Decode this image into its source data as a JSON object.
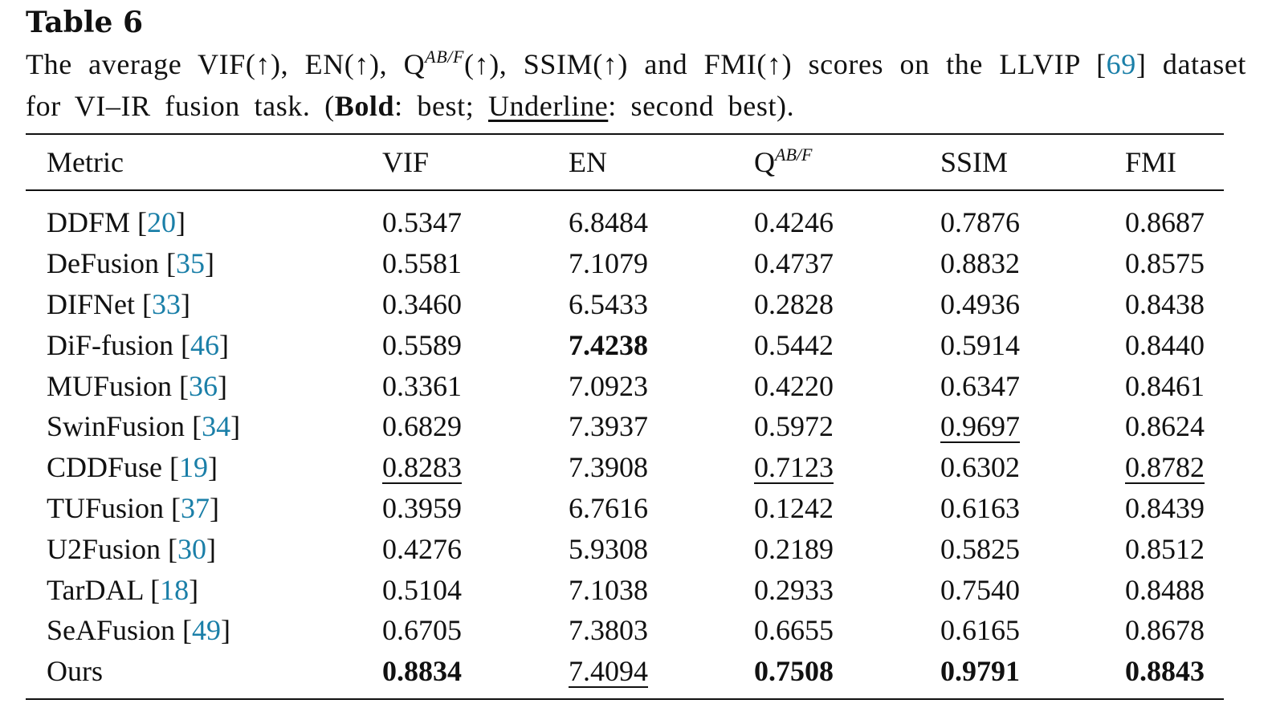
{
  "table_label": "Table 6",
  "caption": {
    "part1": "The average VIF(↑), EN(↑), Q",
    "q_sup": "AB/F",
    "part2": "(↑), SSIM(↑) and FMI(↑) scores on the LLVIP [",
    "ref": "69",
    "part3": "] dataset for VI–IR fusion task. (",
    "bold_word": "Bold",
    "part4": ": best; ",
    "underline_word": "Underline",
    "part5": ": second best)."
  },
  "table": {
    "headers": {
      "metric": "Metric",
      "vif": "VIF",
      "en": "EN",
      "q_base": "Q",
      "q_sup": "AB/F",
      "ssim": "SSIM",
      "fmi": "FMI"
    },
    "rows": [
      {
        "method": "DDFM",
        "ref": "20",
        "vif": "0.5347",
        "en": "6.8484",
        "q": "0.4246",
        "ssim": "0.7876",
        "fmi": "0.8687"
      },
      {
        "method": "DeFusion",
        "ref": "35",
        "vif": "0.5581",
        "en": "7.1079",
        "q": "0.4737",
        "ssim": "0.8832",
        "fmi": "0.8575"
      },
      {
        "method": "DIFNet",
        "ref": "33",
        "vif": "0.3460",
        "en": "6.5433",
        "q": "0.2828",
        "ssim": "0.4936",
        "fmi": "0.8438"
      },
      {
        "method": "DiF-fusion",
        "ref": "46",
        "vif": "0.5589",
        "en": "7.4238",
        "q": "0.5442",
        "ssim": "0.5914",
        "fmi": "0.8440"
      },
      {
        "method": "MUFusion",
        "ref": "36",
        "vif": "0.3361",
        "en": "7.0923",
        "q": "0.4220",
        "ssim": "0.6347",
        "fmi": "0.8461"
      },
      {
        "method": "SwinFusion",
        "ref": "34",
        "vif": "0.6829",
        "en": "7.3937",
        "q": "0.5972",
        "ssim": "0.9697",
        "fmi": "0.8624"
      },
      {
        "method": "CDDFuse",
        "ref": "19",
        "vif": "0.8283",
        "en": "7.3908",
        "q": "0.7123",
        "ssim": "0.6302",
        "fmi": "0.8782"
      },
      {
        "method": "TUFusion",
        "ref": "37",
        "vif": "0.3959",
        "en": "6.7616",
        "q": "0.1242",
        "ssim": "0.6163",
        "fmi": "0.8439"
      },
      {
        "method": "U2Fusion",
        "ref": "30",
        "vif": "0.4276",
        "en": "5.9308",
        "q": "0.2189",
        "ssim": "0.5825",
        "fmi": "0.8512"
      },
      {
        "method": "TarDAL",
        "ref": "18",
        "vif": "0.5104",
        "en": "7.1038",
        "q": "0.2933",
        "ssim": "0.7540",
        "fmi": "0.8488"
      },
      {
        "method": "SeAFusion",
        "ref": "49",
        "vif": "0.6705",
        "en": "7.3803",
        "q": "0.6655",
        "ssim": "0.6165",
        "fmi": "0.8678"
      },
      {
        "method": "Ours",
        "ref": "",
        "vif": "0.8834",
        "en": "7.4094",
        "q": "0.7508",
        "ssim": "0.9791",
        "fmi": "0.8843"
      }
    ]
  }
}
